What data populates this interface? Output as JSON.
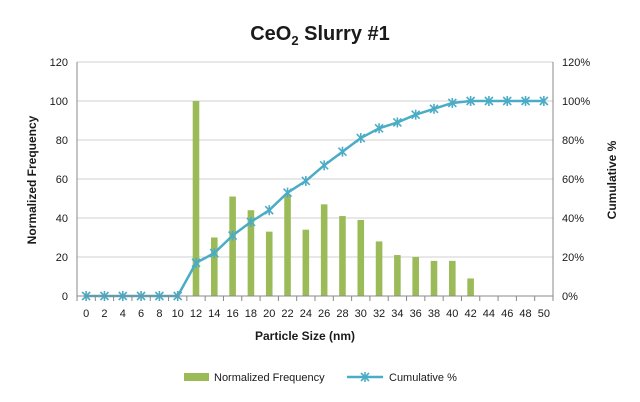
{
  "chart_data": {
    "type": "bar+line",
    "title": "CeO",
    "title_subscript": "2",
    "title_rest": " Slurry #1",
    "xlabel": "Particle Size (nm)",
    "ylabel": "Normalized Frequency",
    "y2label": "Cumulative %",
    "x": [
      0,
      2,
      4,
      6,
      8,
      10,
      12,
      14,
      16,
      18,
      20,
      22,
      24,
      26,
      28,
      30,
      32,
      34,
      36,
      38,
      40,
      42,
      44,
      46,
      48,
      50
    ],
    "ylim": [
      0,
      120
    ],
    "yticks": [
      0,
      20,
      40,
      60,
      80,
      100,
      120
    ],
    "y2lim": [
      0,
      120
    ],
    "y2ticks": [
      "0%",
      "20%",
      "40%",
      "60%",
      "80%",
      "100%",
      "120%"
    ],
    "grid": "horizontal",
    "legend_position": "bottom",
    "series": [
      {
        "name": "Normalized Frequency",
        "type": "bar",
        "axis": "left",
        "color": "#9bbb59",
        "values": [
          0,
          0,
          0,
          0,
          0,
          0,
          100,
          30,
          51,
          44,
          33,
          52,
          34,
          47,
          41,
          39,
          28,
          21,
          20,
          18,
          18,
          9,
          0,
          0,
          0,
          0
        ]
      },
      {
        "name": "Cumulative %",
        "type": "line",
        "axis": "right",
        "color": "#4bacc6",
        "values": [
          0,
          0,
          0,
          0,
          0,
          0,
          17,
          22,
          31,
          38,
          44,
          53,
          59,
          67,
          74,
          81,
          86,
          89,
          93,
          96,
          99,
          100,
          100,
          100,
          100,
          100
        ]
      }
    ]
  }
}
